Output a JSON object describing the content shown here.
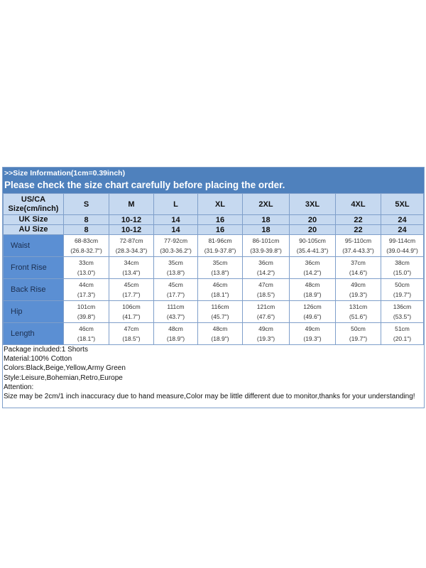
{
  "title": ">>Size Information(1cm=0.39inch)",
  "subtitle": "Please check the size chart carefully before placing the order.",
  "header_rows": [
    {
      "label_line1": "US/CA",
      "label_line2": "Size(cm/inch)",
      "values": [
        "S",
        "M",
        "L",
        "XL",
        "2XL",
        "3XL",
        "4XL",
        "5XL"
      ]
    },
    {
      "label": "UK Size",
      "values": [
        "8",
        "10-12",
        "14",
        "16",
        "18",
        "20",
        "22",
        "24"
      ]
    },
    {
      "label": "AU Size",
      "values": [
        "8",
        "10-12",
        "14",
        "16",
        "18",
        "20",
        "22",
        "24"
      ]
    }
  ],
  "rows": [
    {
      "label": "Waist",
      "cm": [
        "68-83cm",
        "72-87cm",
        "77-92cm",
        "81-96cm",
        "86-101cm",
        "90-105cm",
        "95-110cm",
        "99-114cm"
      ],
      "inch": [
        "(26.8-32.7\")",
        "(28.3-34.3\")",
        "(30.3-36.2\")",
        "(31.9-37.8\")",
        "(33.9-39.8\")",
        "(35.4-41.3\")",
        "(37.4-43.3\")",
        "(39.0-44.9\")"
      ]
    },
    {
      "label": "Front Rise",
      "cm": [
        "33cm",
        "34cm",
        "35cm",
        "35cm",
        "36cm",
        "36cm",
        "37cm",
        "38cm"
      ],
      "inch": [
        "(13.0\")",
        "(13.4\")",
        "(13.8\")",
        "(13.8\")",
        "(14.2\")",
        "(14.2\")",
        "(14.6\")",
        "(15.0\")"
      ]
    },
    {
      "label": "Back Rise",
      "cm": [
        "44cm",
        "45cm",
        "45cm",
        "46cm",
        "47cm",
        "48cm",
        "49cm",
        "50cm"
      ],
      "inch": [
        "(17.3\")",
        "(17.7\")",
        "(17.7\")",
        "(18.1\")",
        "(18.5\")",
        "(18.9\")",
        "(19.3\")",
        "(19.7\")"
      ]
    },
    {
      "label": "Hip",
      "cm": [
        "101cm",
        "106cm",
        "111cm",
        "116cm",
        "121cm",
        "126cm",
        "131cm",
        "136cm"
      ],
      "inch": [
        "(39.8\")",
        "(41.7\")",
        "(43.7\")",
        "(45.7\")",
        "(47.6\")",
        "(49.6\")",
        "(51.6\")",
        "(53.5\")"
      ]
    },
    {
      "label": "Length",
      "cm": [
        "46cm",
        "47cm",
        "48cm",
        "48cm",
        "49cm",
        "49cm",
        "50cm",
        "51cm"
      ],
      "inch": [
        "(18.1\")",
        "(18.5\")",
        "(18.9\")",
        "(18.9\")",
        "(19.3\")",
        "(19.3\")",
        "(19.7\")",
        "(20.1\")"
      ]
    }
  ],
  "notes": [
    "Package included:1 Shorts",
    "Material:100% Cotton",
    "Colors:Black,Beige,Yellow,Army Green",
    "Style:Leisure,Bohemian,Retro,Europe",
    "Attention:",
    "Size may be 2cm/1 inch inaccuracy due to hand measure,Color may be little different due to monitor,thanks for your understanding!"
  ],
  "colors": {
    "title_bar": "#4f81bd",
    "header_bg": "#c6d9f0",
    "label_col": "#5b8fd3",
    "border": "#7f9fca"
  }
}
